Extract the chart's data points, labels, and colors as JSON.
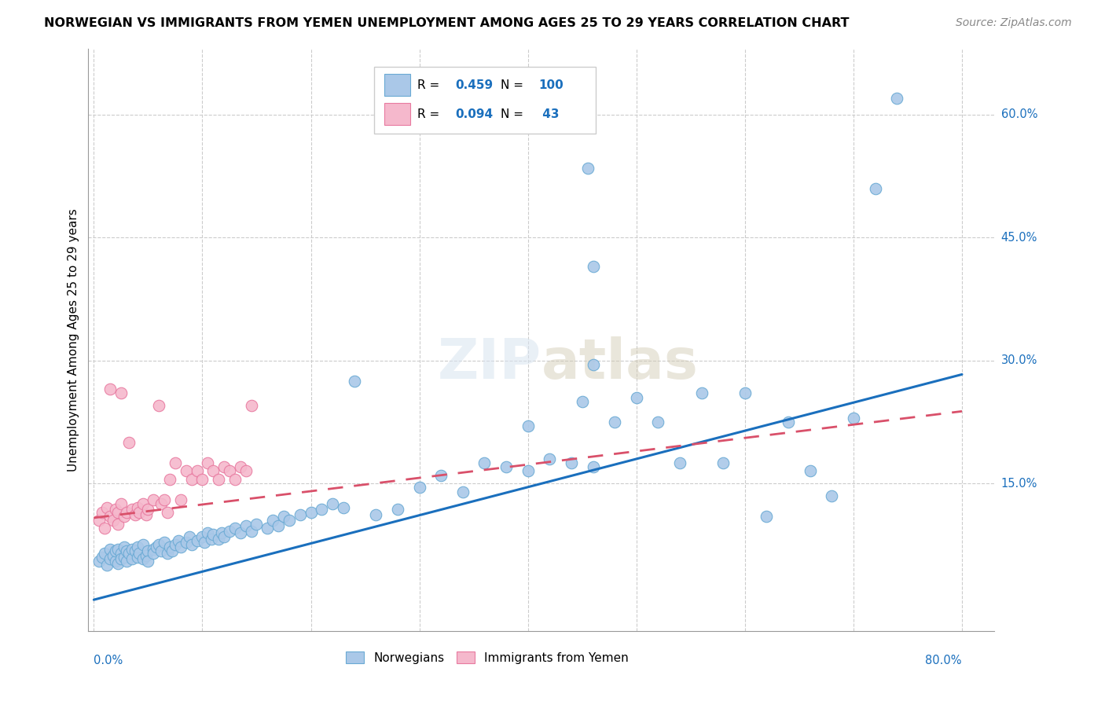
{
  "title": "NORWEGIAN VS IMMIGRANTS FROM YEMEN UNEMPLOYMENT AMONG AGES 25 TO 29 YEARS CORRELATION CHART",
  "source": "Source: ZipAtlas.com",
  "ylabel": "Unemployment Among Ages 25 to 29 years",
  "yticks": [
    "60.0%",
    "45.0%",
    "30.0%",
    "15.0%"
  ],
  "ytick_vals": [
    0.6,
    0.45,
    0.3,
    0.15
  ],
  "xlim": [
    -0.005,
    0.83
  ],
  "ylim": [
    -0.03,
    0.68
  ],
  "norwegian_color": "#aac8e8",
  "norwegian_edge": "#6aaad4",
  "yemen_color": "#f5b8cc",
  "yemen_edge": "#e87aa0",
  "trend_blue": "#1a6fbd",
  "trend_pink": "#d9506a",
  "watermark": "ZIPatlas",
  "norw_trend_x": [
    0.0,
    0.8
  ],
  "norw_trend_y": [
    0.008,
    0.283
  ],
  "yem_trend_x": [
    0.0,
    0.8
  ],
  "yem_trend_y": [
    0.108,
    0.238
  ],
  "legend_R_norwegian": "0.459",
  "legend_N_norwegian": "100",
  "legend_R_yemen": "0.094",
  "legend_N_yemen": " 43",
  "norwegians_x": [
    0.005,
    0.008,
    0.01,
    0.012,
    0.015,
    0.015,
    0.018,
    0.02,
    0.02,
    0.022,
    0.022,
    0.025,
    0.025,
    0.028,
    0.028,
    0.03,
    0.03,
    0.032,
    0.035,
    0.035,
    0.038,
    0.04,
    0.04,
    0.042,
    0.045,
    0.045,
    0.048,
    0.05,
    0.05,
    0.055,
    0.055,
    0.058,
    0.06,
    0.062,
    0.065,
    0.068,
    0.07,
    0.072,
    0.075,
    0.078,
    0.08,
    0.085,
    0.088,
    0.09,
    0.095,
    0.1,
    0.102,
    0.105,
    0.108,
    0.11,
    0.115,
    0.118,
    0.12,
    0.125,
    0.13,
    0.135,
    0.14,
    0.145,
    0.15,
    0.16,
    0.165,
    0.17,
    0.175,
    0.18,
    0.19,
    0.2,
    0.21,
    0.22,
    0.23,
    0.24,
    0.26,
    0.28,
    0.3,
    0.32,
    0.34,
    0.36,
    0.38,
    0.4,
    0.42,
    0.44,
    0.46,
    0.46,
    0.48,
    0.5,
    0.52,
    0.54,
    0.56,
    0.58,
    0.6,
    0.62,
    0.64,
    0.66,
    0.68,
    0.7,
    0.72,
    0.74,
    0.4,
    0.45,
    0.46,
    0.455
  ],
  "norwegians_y": [
    0.055,
    0.06,
    0.065,
    0.05,
    0.07,
    0.058,
    0.062,
    0.055,
    0.068,
    0.052,
    0.07,
    0.065,
    0.058,
    0.072,
    0.06,
    0.068,
    0.055,
    0.065,
    0.07,
    0.058,
    0.068,
    0.06,
    0.072,
    0.065,
    0.058,
    0.075,
    0.062,
    0.068,
    0.055,
    0.07,
    0.065,
    0.072,
    0.075,
    0.068,
    0.078,
    0.065,
    0.072,
    0.068,
    0.075,
    0.08,
    0.072,
    0.078,
    0.085,
    0.075,
    0.08,
    0.085,
    0.078,
    0.09,
    0.082,
    0.088,
    0.082,
    0.09,
    0.085,
    0.092,
    0.095,
    0.09,
    0.098,
    0.092,
    0.1,
    0.095,
    0.105,
    0.098,
    0.11,
    0.105,
    0.112,
    0.115,
    0.118,
    0.125,
    0.12,
    0.275,
    0.112,
    0.118,
    0.145,
    0.16,
    0.14,
    0.175,
    0.17,
    0.165,
    0.18,
    0.175,
    0.295,
    0.17,
    0.225,
    0.255,
    0.225,
    0.175,
    0.26,
    0.175,
    0.26,
    0.11,
    0.225,
    0.165,
    0.135,
    0.23,
    0.51,
    0.62,
    0.22,
    0.25,
    0.415,
    0.535
  ],
  "yemen_x": [
    0.005,
    0.008,
    0.01,
    0.012,
    0.015,
    0.015,
    0.018,
    0.02,
    0.022,
    0.022,
    0.025,
    0.025,
    0.028,
    0.03,
    0.032,
    0.035,
    0.038,
    0.04,
    0.042,
    0.045,
    0.048,
    0.05,
    0.055,
    0.06,
    0.062,
    0.065,
    0.068,
    0.07,
    0.075,
    0.08,
    0.085,
    0.09,
    0.095,
    0.1,
    0.105,
    0.11,
    0.115,
    0.12,
    0.125,
    0.13,
    0.135,
    0.14,
    0.145
  ],
  "yemen_y": [
    0.105,
    0.115,
    0.095,
    0.12,
    0.11,
    0.265,
    0.105,
    0.118,
    0.115,
    0.1,
    0.26,
    0.125,
    0.11,
    0.115,
    0.2,
    0.118,
    0.112,
    0.12,
    0.115,
    0.125,
    0.112,
    0.118,
    0.13,
    0.245,
    0.125,
    0.13,
    0.115,
    0.155,
    0.175,
    0.13,
    0.165,
    0.155,
    0.165,
    0.155,
    0.175,
    0.165,
    0.155,
    0.17,
    0.165,
    0.155,
    0.17,
    0.165,
    0.245
  ]
}
